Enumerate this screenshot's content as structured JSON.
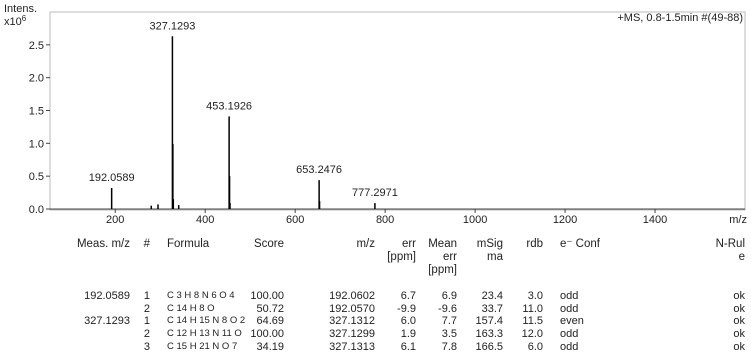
{
  "chart_data": {
    "type": "spectrum",
    "title": "+MS, 0.8-1.5min #(49-88)",
    "y_label": "Intens.",
    "y_scale_base": "x10",
    "y_scale_exponent": "6",
    "x_label": "m/z",
    "x": [
      192.0589,
      280.1,
      295.1,
      327.1293,
      328.13,
      329.13,
      341.1,
      453.1926,
      454.19,
      455.2,
      653.2476,
      654.25,
      777.2971
    ],
    "values": [
      0.32,
      0.05,
      0.07,
      2.63,
      0.99,
      0.15,
      0.06,
      1.41,
      0.5,
      0.09,
      0.44,
      0.12,
      0.09
    ],
    "peak_labels": [
      "192.0589",
      null,
      null,
      "327.1293",
      null,
      null,
      null,
      "453.1926",
      null,
      null,
      "653.2476",
      null,
      "777.2971"
    ],
    "color": "#000000",
    "xlim": [
      55,
      1600
    ],
    "xticks": [
      200,
      400,
      600,
      800,
      1000,
      1200,
      1400
    ],
    "ylim": [
      0,
      3.0
    ],
    "yticks": [
      {
        "value": 0,
        "label": "0.0"
      },
      0.5,
      {
        "value": 1,
        "label": "1.0"
      },
      1.5,
      {
        "value": 2,
        "label": "2.0"
      },
      2.5
    ]
  },
  "table": {
    "header": [
      "Meas. m/z",
      "#",
      "Formula",
      "Score",
      "m/z",
      "err [ppm]",
      "Mean err [ppm]",
      "mSigma",
      "rdb",
      "e⁻ Conf",
      "N-Rule"
    ],
    "rows": [
      [
        "192.0589",
        "1",
        "C 3 H 8 N 6 O 4",
        "100.00",
        "192.0602",
        "6.7",
        "6.9",
        "23.4",
        "3.0",
        "odd",
        "ok"
      ],
      [
        null,
        "2",
        "C 14 H 8 O",
        "50.72",
        "192.0570",
        "-9.9",
        "-9.6",
        "33.7",
        "11.0",
        "odd",
        "ok"
      ],
      [
        "327.1293",
        "1",
        "C 14 H 15 N 8 O 2",
        "64.69",
        "327.1312",
        "6.0",
        "7.7",
        "157.4",
        "11.5",
        "even",
        "ok"
      ],
      [
        null,
        "2",
        "C 12 H 13 N 11 O",
        "100.00",
        "327.1299",
        "1.9",
        "3.5",
        "163.3",
        "12.0",
        "odd",
        "ok"
      ],
      [
        null,
        "3",
        "C 15 H 21 N O 7",
        "34.19",
        "327.1313",
        "6.1",
        "7.8",
        "166.5",
        "6.0",
        "odd",
        "ok"
      ]
    ]
  }
}
